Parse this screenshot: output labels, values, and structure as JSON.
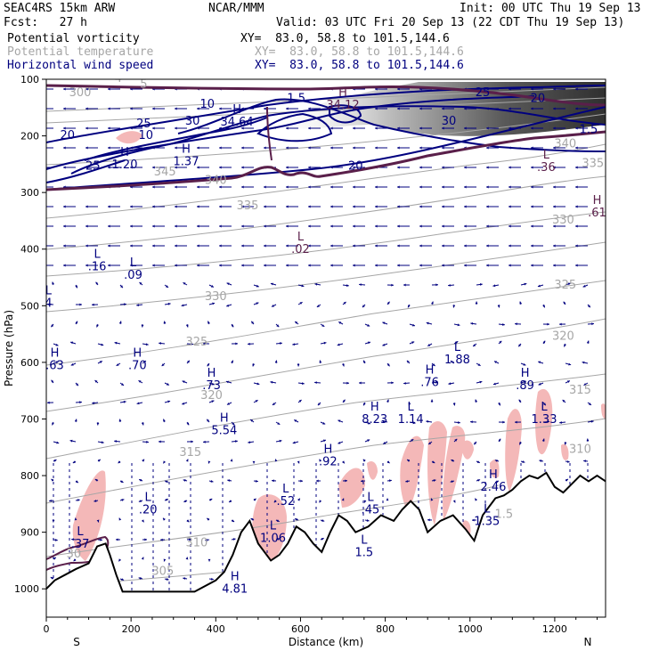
{
  "header": {
    "model": "SEAC4RS 15km ARW",
    "forecast": "Fcst:   27 h",
    "center": "NCAR/MMM",
    "init": "Init: 00 UTC Thu 19 Sep 13",
    "valid": "Valid: 03 UTC Fri 20 Sep 13 (22 CDT Thu 19 Sep 13)",
    "fields": [
      {
        "name": "Potential vorticity",
        "xy": "XY=  83.0, 58.8 to 101.5,144.6",
        "color": "#000000"
      },
      {
        "name": "Potential temperature",
        "xy": "XY=  83.0, 58.8 to 101.5,144.6",
        "color": "#a6a6a6"
      },
      {
        "name": "Horizontal wind speed",
        "xy": "XY=  83.0, 58.8 to 101.5,144.6",
        "color": "#00007f"
      }
    ]
  },
  "chart_data": {
    "type": "cross-section",
    "xlabel": "Distance (km)",
    "ylabel": "Pressure (hPa)",
    "xlim": [
      0,
      1320
    ],
    "ylim": [
      1050,
      100
    ],
    "x_ticks": [
      "0",
      "200",
      "400",
      "600",
      "800",
      "1000",
      "1200"
    ],
    "y_ticks": [
      "100",
      "200",
      "300",
      "400",
      "500",
      "600",
      "700",
      "800",
      "900",
      "1000"
    ],
    "end_labels": {
      "left": "S",
      "right": "N"
    },
    "colors": {
      "pv_fill": "#f4b8b8",
      "wind": "#00007f",
      "theta": "#a6a6a6",
      "pv_high": "#4d4d4d",
      "pv_contour": "#5a1f4a",
      "terrain": "#000000"
    },
    "terrain": {
      "x": [
        0,
        20,
        45,
        70,
        100,
        120,
        140,
        150,
        165,
        180,
        200,
        350,
        400,
        420,
        440,
        460,
        480,
        500,
        530,
        550,
        570,
        590,
        610,
        630,
        650,
        670,
        690,
        710,
        730,
        760,
        790,
        820,
        840,
        860,
        880,
        900,
        930,
        960,
        990,
        1010,
        1030,
        1060,
        1080,
        1100,
        1120,
        1140,
        1160,
        1180,
        1200,
        1220,
        1240,
        1260,
        1280,
        1300,
        1320
      ],
      "p": [
        1000,
        985,
        975,
        965,
        955,
        925,
        920,
        940,
        975,
        1005,
        1005,
        1005,
        985,
        970,
        940,
        900,
        880,
        920,
        950,
        940,
        920,
        890,
        900,
        920,
        935,
        900,
        870,
        880,
        900,
        890,
        870,
        880,
        860,
        845,
        860,
        900,
        880,
        870,
        895,
        915,
        870,
        840,
        835,
        825,
        810,
        800,
        805,
        795,
        820,
        830,
        815,
        800,
        810,
        800,
        810
      ]
    },
    "wind_speed_contours": [
      "5",
      "10",
      "15",
      "20",
      "25",
      "30",
      "35"
    ],
    "theta_contours": [
      "300",
      "305",
      "310",
      "315",
      "320",
      "325",
      "330",
      "335",
      "340",
      "345"
    ],
    "annotations": [
      {
        "type": "H",
        "value": "34.12",
        "x": 700,
        "p": 130
      },
      {
        "type": "H",
        "value": "34.64",
        "x": 450,
        "p": 160
      },
      {
        "type": "H",
        "value": "1.37",
        "x": 330,
        "p": 230
      },
      {
        "type": "H",
        "value": "1.20",
        "x": 185,
        "p": 235
      },
      {
        "type": "L",
        "value": ".36",
        "x": 1180,
        "p": 240
      },
      {
        "type": "H",
        "value": ".61",
        "x": 1300,
        "p": 320
      },
      {
        "type": "L",
        "value": ".02",
        "x": 600,
        "p": 385
      },
      {
        "type": "L",
        "value": ".16",
        "x": 120,
        "p": 415
      },
      {
        "type": "L",
        "value": ".09",
        "x": 205,
        "p": 430
      },
      {
        "type": "H",
        "value": ".63",
        "x": 20,
        "p": 590
      },
      {
        "type": "H",
        "value": ".70",
        "x": 215,
        "p": 590
      },
      {
        "type": "L",
        "value": "1.88",
        "x": 970,
        "p": 580
      },
      {
        "type": "H",
        "value": ".73",
        "x": 390,
        "p": 625
      },
      {
        "type": "H",
        "value": ".76",
        "x": 905,
        "p": 620
      },
      {
        "type": "H",
        "value": ".89",
        "x": 1130,
        "p": 625
      },
      {
        "type": "H",
        "value": "5.54",
        "x": 420,
        "p": 705
      },
      {
        "type": "H",
        "value": "8.23",
        "x": 775,
        "p": 685
      },
      {
        "type": "L",
        "value": "1.14",
        "x": 860,
        "p": 685
      },
      {
        "type": "L",
        "value": "1.33",
        "x": 1175,
        "p": 685
      },
      {
        "type": "H",
        "value": ".92",
        "x": 665,
        "p": 760
      },
      {
        "type": "H",
        "value": "2.46",
        "x": 1055,
        "p": 805
      },
      {
        "type": "L",
        "value": ".20",
        "x": 240,
        "p": 845
      },
      {
        "type": "L",
        "value": ".52",
        "x": 565,
        "p": 830
      },
      {
        "type": "L",
        "value": ".45",
        "x": 765,
        "p": 845
      },
      {
        "type": "L",
        "value": "1.35",
        "x": 1040,
        "p": 865
      },
      {
        "type": "L",
        "value": "1.06",
        "x": 535,
        "p": 895
      },
      {
        "type": "L",
        "value": ".37",
        "x": 80,
        "p": 905
      },
      {
        "type": "H",
        "value": "4.81",
        "x": 445,
        "p": 985
      },
      {
        "type": "L",
        "value": "4",
        "x": 5,
        "p": 480
      },
      {
        "type": "L",
        "value": "1.5",
        "x": 750,
        "p": 920
      }
    ],
    "contour_labels": [
      {
        "text": "300",
        "x": 80,
        "p": 130,
        "color": "#a6a6a6"
      },
      {
        "text": "5",
        "x": 230,
        "p": 115,
        "color": "#a6a6a6"
      },
      {
        "text": "4",
        "x": 170,
        "p": 105,
        "color": "#a6a6a6"
      },
      {
        "text": "20",
        "x": 50,
        "p": 205,
        "color": "#00007f"
      },
      {
        "text": "25",
        "x": 110,
        "p": 260,
        "color": "#00007f"
      },
      {
        "text": "25",
        "x": 230,
        "p": 185,
        "color": "#00007f"
      },
      {
        "text": "10",
        "x": 235,
        "p": 205,
        "color": "#00007f"
      },
      {
        "text": "30",
        "x": 345,
        "p": 180,
        "color": "#00007f"
      },
      {
        "text": "10",
        "x": 380,
        "p": 150,
        "color": "#00007f"
      },
      {
        "text": "1.5",
        "x": 590,
        "p": 140,
        "color": "#00007f"
      },
      {
        "text": "30",
        "x": 950,
        "p": 180,
        "color": "#00007f"
      },
      {
        "text": "25",
        "x": 1030,
        "p": 130,
        "color": "#00007f"
      },
      {
        "text": "20",
        "x": 1160,
        "p": 140,
        "color": "#00007f"
      },
      {
        "text": "1.5",
        "x": 1280,
        "p": 195,
        "color": "#00007f"
      },
      {
        "text": "20",
        "x": 730,
        "p": 260,
        "color": "#00007f"
      },
      {
        "text": "345",
        "x": 280,
        "p": 270,
        "color": "#a6a6a6"
      },
      {
        "text": "340",
        "x": 400,
        "p": 285,
        "color": "#a6a6a6"
      },
      {
        "text": "340",
        "x": 1225,
        "p": 220,
        "color": "#a6a6a6"
      },
      {
        "text": "335",
        "x": 1290,
        "p": 255,
        "color": "#a6a6a6"
      },
      {
        "text": "335",
        "x": 475,
        "p": 330,
        "color": "#a6a6a6"
      },
      {
        "text": "330",
        "x": 1220,
        "p": 355,
        "color": "#a6a6a6"
      },
      {
        "text": "330",
        "x": 400,
        "p": 490,
        "color": "#a6a6a6"
      },
      {
        "text": "325",
        "x": 1225,
        "p": 470,
        "color": "#a6a6a6"
      },
      {
        "text": "325",
        "x": 355,
        "p": 570,
        "color": "#a6a6a6"
      },
      {
        "text": "320",
        "x": 1220,
        "p": 560,
        "color": "#a6a6a6"
      },
      {
        "text": "320",
        "x": 390,
        "p": 665,
        "color": "#a6a6a6"
      },
      {
        "text": "315",
        "x": 1260,
        "p": 655,
        "color": "#a6a6a6"
      },
      {
        "text": "315",
        "x": 340,
        "p": 765,
        "color": "#a6a6a6"
      },
      {
        "text": "310",
        "x": 355,
        "p": 925,
        "color": "#a6a6a6"
      },
      {
        "text": "305",
        "x": 275,
        "p": 975,
        "color": "#a6a6a6"
      },
      {
        "text": "30",
        "x": 65,
        "p": 945,
        "color": "#a6a6a6"
      },
      {
        "text": "1.5",
        "x": 1080,
        "p": 875,
        "color": "#a6a6a6"
      },
      {
        "text": "310",
        "x": 1260,
        "p": 760,
        "color": "#a6a6a6"
      }
    ]
  }
}
